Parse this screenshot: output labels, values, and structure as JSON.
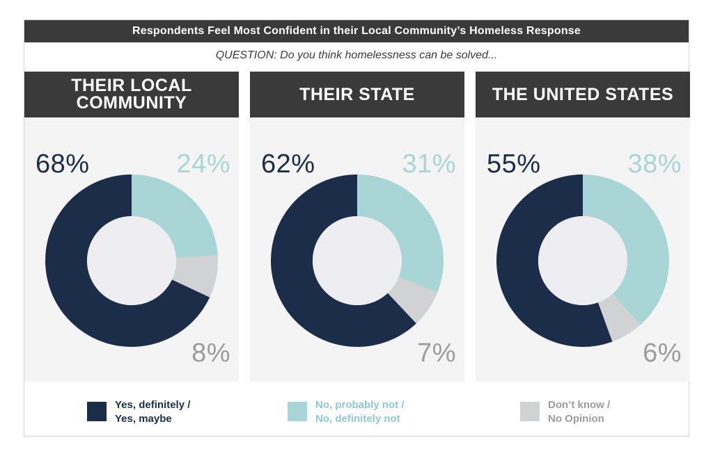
{
  "title": "Respondents Feel Most Confident in their Local Community’s Homeless Response",
  "question": "QUESTION: Do you think homelessness can be solved...",
  "colors": {
    "yes": "#1c2d4a",
    "no": "#a8d5d5",
    "dk": "#d1d2d4",
    "header": "#3a3a3a",
    "panel": "#f4f4f4",
    "hole": "#eeeef2"
  },
  "panels": [
    {
      "header": "THEIR LOCAL\nCOMMUNITY",
      "yes_label": "68%",
      "no_label": "24%",
      "dk_label": "8%"
    },
    {
      "header": "THEIR STATE",
      "yes_label": "62%",
      "no_label": "31%",
      "dk_label": "7%"
    },
    {
      "header": "THE UNITED STATES",
      "yes_label": "55%",
      "no_label": "38%",
      "dk_label": "6%"
    }
  ],
  "legend": [
    {
      "label": "Yes, definitely /\nYes, maybe",
      "color": "#1c2d4a",
      "text_color": "#1c2d4a"
    },
    {
      "label": "No, probably not /\nNo, definitely not",
      "color": "#a8d5d5",
      "text_color": "#8fcaca"
    },
    {
      "label": "Don’t know /\nNo Opinion",
      "color": "#d1d2d4",
      "text_color": "#9c9c9c"
    }
  ],
  "chart_data": {
    "type": "pie",
    "categories": [
      "Yes, definitely / Yes, maybe",
      "No, probably not / No, definitely not",
      "Don’t know / No Opinion"
    ],
    "series": [
      {
        "name": "THEIR LOCAL COMMUNITY",
        "values": [
          68,
          24,
          8
        ]
      },
      {
        "name": "THEIR STATE",
        "values": [
          62,
          31,
          7
        ]
      },
      {
        "name": "THE UNITED STATES",
        "values": [
          55,
          38,
          6
        ]
      }
    ],
    "title": "Respondents Feel Most Confident in their Local Community’s Homeless Response",
    "subtitle": "QUESTION: Do you think homelessness can be solved...",
    "donut": true,
    "legend_position": "bottom",
    "grid": false
  }
}
